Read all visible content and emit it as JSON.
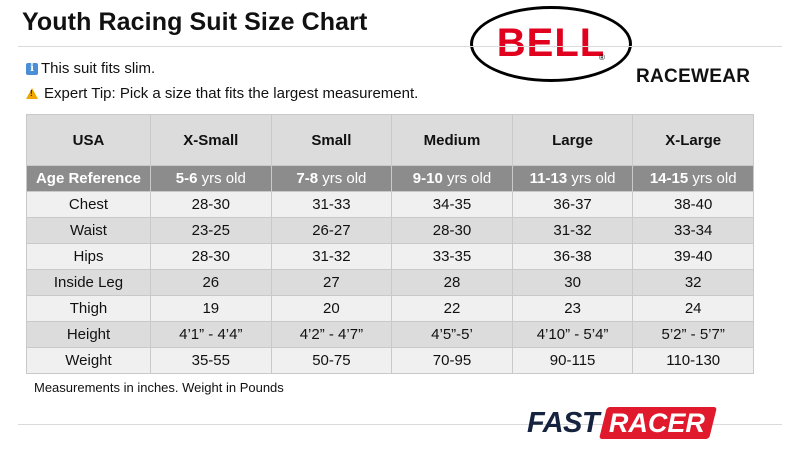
{
  "header": {
    "title": "Youth Racing Suit Size Chart",
    "brand_logo_text": "BELL",
    "brand_reg_mark": "®",
    "brand_sub": "RACEWEAR"
  },
  "notes": {
    "fit_icon": "info-icon",
    "fit": "This suit fits slim.",
    "tip_icon": "warning-icon",
    "tip": "Expert Tip:  Pick a size that fits the largest measurement."
  },
  "table": {
    "columns": [
      "USA",
      "X-Small",
      "Small",
      "Medium",
      "Large",
      "X-Large"
    ],
    "age_row": {
      "label": "Age Reference",
      "values": [
        {
          "num": "5-6",
          "unit": " yrs old"
        },
        {
          "num": "7-8",
          "unit": " yrs old"
        },
        {
          "num": "9-10",
          "unit": " yrs old"
        },
        {
          "num": "11-13",
          "unit": " yrs old"
        },
        {
          "num": "14-15",
          "unit": " yrs old"
        }
      ]
    },
    "rows": [
      {
        "label": "Chest",
        "values": [
          "28-30",
          "31-33",
          "34-35",
          "36-37",
          "38-40"
        ]
      },
      {
        "label": "Waist",
        "values": [
          "23-25",
          "26-27",
          "28-30",
          "31-32",
          "33-34"
        ]
      },
      {
        "label": "Hips",
        "values": [
          "28-30",
          "31-32",
          "33-35",
          "36-38",
          "39-40"
        ]
      },
      {
        "label": "Inside Leg",
        "values": [
          "26",
          "27",
          "28",
          "30",
          "32"
        ]
      },
      {
        "label": "Thigh",
        "values": [
          "19",
          "20",
          "22",
          "23",
          "24"
        ]
      },
      {
        "label": "Height",
        "values": [
          "4’1” - 4’4”",
          "4’2” - 4’7”",
          "4’5”-5’",
          "4’10” - 5’4”",
          "5’2” - 5’7”"
        ]
      },
      {
        "label": "Weight",
        "values": [
          "35-55",
          "50-75",
          "70-95",
          "90-115",
          "110-130"
        ]
      }
    ]
  },
  "footnote": "Measurements in inches. Weight in Pounds",
  "footer_logo": {
    "fast": "FAST",
    "racer": "RACER"
  },
  "colors": {
    "bell_red": "#e1001e",
    "racer_red": "#e01a2c",
    "fast_navy": "#16233f",
    "age_row_bg": "#8c8c8c"
  }
}
